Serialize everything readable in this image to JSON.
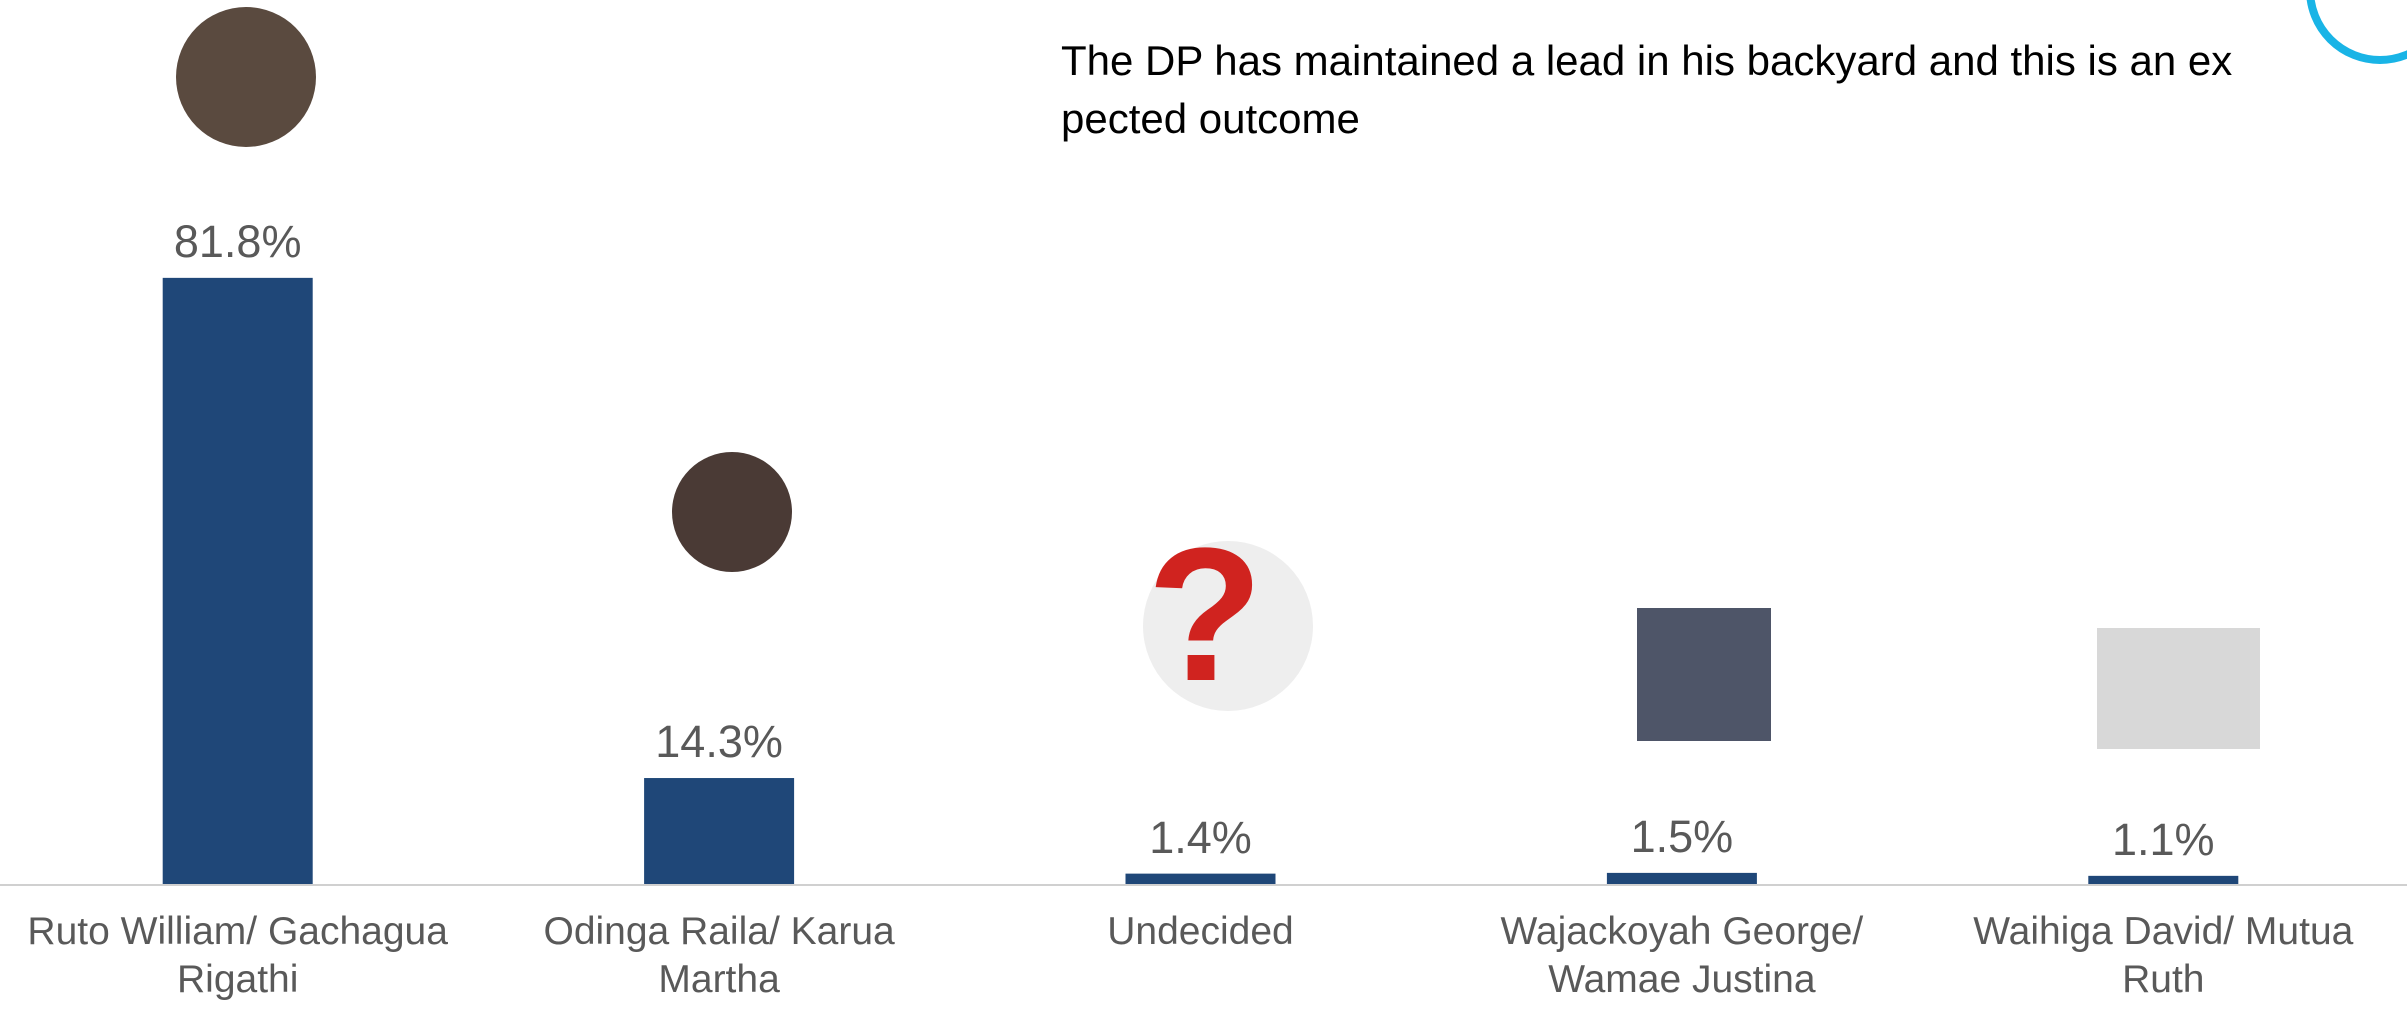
{
  "chart_data": {
    "type": "bar",
    "annotation": "The DP has maintained a lead in his backyard and this is an expected outcome",
    "categories": [
      "Ruto William/ Gachagua Rigathi",
      "Odinga Raila/ Karua Martha",
      "Undecided",
      "Wajackoyah George/ Wamae Justina",
      "Waihiga David/ Mutua Ruth"
    ],
    "values": [
      81.8,
      14.3,
      1.4,
      1.5,
      1.1
    ],
    "value_labels": [
      "81.8%",
      "14.3%",
      "1.4%",
      "1.5%",
      "1.1%"
    ],
    "color": "#1f4778",
    "ylim": [
      0,
      100
    ]
  }
}
